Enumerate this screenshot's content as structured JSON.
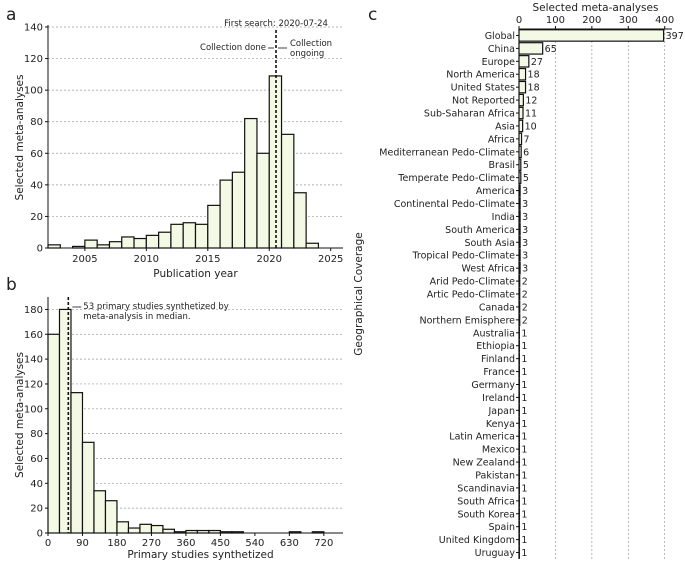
{
  "chart_data": [
    {
      "panel": "a",
      "type": "bar",
      "subtype": "histogram",
      "xlabel": "Publication year",
      "ylabel": "Selected meta-analyses",
      "xlim": [
        2002,
        2026
      ],
      "ylim": [
        0,
        140
      ],
      "xticks": [
        2005,
        2010,
        2015,
        2020,
        2025
      ],
      "yticks": [
        0,
        20,
        40,
        60,
        80,
        100,
        120,
        140
      ],
      "bins": [
        {
          "x": 2002,
          "value": 2
        },
        {
          "x": 2003,
          "value": 0
        },
        {
          "x": 2004,
          "value": 1
        },
        {
          "x": 2005,
          "value": 5
        },
        {
          "x": 2006,
          "value": 2
        },
        {
          "x": 2007,
          "value": 4
        },
        {
          "x": 2008,
          "value": 7
        },
        {
          "x": 2009,
          "value": 6
        },
        {
          "x": 2010,
          "value": 8
        },
        {
          "x": 2011,
          "value": 10
        },
        {
          "x": 2012,
          "value": 15
        },
        {
          "x": 2013,
          "value": 16
        },
        {
          "x": 2014,
          "value": 15
        },
        {
          "x": 2015,
          "value": 27
        },
        {
          "x": 2016,
          "value": 43
        },
        {
          "x": 2017,
          "value": 48
        },
        {
          "x": 2018,
          "value": 82
        },
        {
          "x": 2019,
          "value": 60
        },
        {
          "x": 2020,
          "value": 109
        },
        {
          "x": 2021,
          "value": 72
        },
        {
          "x": 2022,
          "value": 35
        },
        {
          "x": 2023,
          "value": 3
        }
      ],
      "vline_x": 2020.55,
      "annotations": {
        "first_search": "First search: 2020-07-24",
        "collection_done": "Collection done",
        "collection_ongoing_1": "Collection",
        "collection_ongoing_2": "ongoing"
      }
    },
    {
      "panel": "b",
      "type": "bar",
      "subtype": "histogram",
      "xlabel": "Primary studies synthetized",
      "ylabel": "Selected meta-analyses",
      "xlim": [
        0,
        770
      ],
      "ylim": [
        0,
        190
      ],
      "bin_width": 30,
      "xticks": [
        0,
        90,
        180,
        270,
        360,
        450,
        540,
        630,
        720
      ],
      "yticks": [
        0,
        20,
        40,
        60,
        80,
        100,
        120,
        140,
        160,
        180
      ],
      "values": [
        160,
        180,
        113,
        73,
        34,
        26,
        9,
        4,
        7,
        6,
        3,
        1,
        2,
        2,
        2,
        1,
        1,
        0,
        0,
        0,
        0,
        1,
        0,
        1,
        0,
        0
      ],
      "vline_x": 53,
      "annotations": {
        "median_1": "53 primary studies synthetized by",
        "median_2": "meta-analysis in median."
      }
    },
    {
      "panel": "c",
      "type": "bar",
      "orientation": "horizontal",
      "xlabel": "Selected meta-analyses",
      "ylabel": "Geographical Coverage",
      "xlim": [
        0,
        420
      ],
      "xticks": [
        0,
        100,
        200,
        300,
        400
      ],
      "categories": [
        "Global",
        "China",
        "Europe",
        "North America",
        "United States",
        "Not Reported",
        "Sub-Saharan Africa",
        "Asia",
        "Africa",
        "Mediterranean Pedo-Climate",
        "Brasil",
        "Temperate Pedo-Climate",
        "America",
        "Continental Pedo-Climate",
        "India",
        "South America",
        "South Asia",
        "Tropical Pedo-Climate",
        "West Africa",
        "Arid Pedo-Climate",
        "Artic Pedo-Climate",
        "Canada",
        "Northern Emisphere",
        "Australia",
        "Ethiopia",
        "Finland",
        "France",
        "Germany",
        "Ireland",
        "Japan",
        "Kenya",
        "Latin America",
        "Mexico",
        "New Zealand",
        "Pakistan",
        "Scandinavia",
        "South Africa",
        "South Korea",
        "Spain",
        "United Kingdom",
        "Uruguay"
      ],
      "values": [
        397,
        65,
        27,
        18,
        18,
        12,
        11,
        10,
        7,
        6,
        5,
        5,
        3,
        3,
        3,
        3,
        3,
        3,
        3,
        2,
        2,
        2,
        2,
        1,
        1,
        1,
        1,
        1,
        1,
        1,
        1,
        1,
        1,
        1,
        1,
        1,
        1,
        1,
        1,
        1,
        1
      ]
    }
  ],
  "panel_labels": {
    "a": "a",
    "b": "b",
    "c": "c"
  }
}
